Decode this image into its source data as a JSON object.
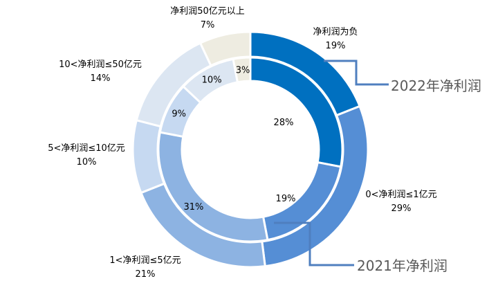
{
  "chart_data": {
    "type": "pie",
    "variant": "double-donut",
    "categories": [
      "净利润为负",
      "0<净利润≤1亿元",
      "1<净利润≤5亿元",
      "5<净利润≤10亿元",
      "10<净利润≤50亿元",
      "净利润50亿元以上"
    ],
    "colors": [
      "#0070C0",
      "#558ED5",
      "#8DB3E2",
      "#C6D9F1",
      "#DCE6F2",
      "#EEECE1"
    ],
    "series": [
      {
        "name": "2022年净利润",
        "ring": "outer",
        "values": [
          19,
          29,
          21,
          10,
          14,
          7
        ],
        "labels": [
          "19%",
          "29%",
          "21%",
          "10%",
          "14%",
          "7%"
        ]
      },
      {
        "name": "2021年净利润",
        "ring": "inner",
        "values": [
          28,
          19,
          31,
          9,
          10,
          3
        ],
        "labels": [
          "28%",
          "19%",
          "31%",
          "9%",
          "10%",
          "3%"
        ]
      }
    ]
  }
}
